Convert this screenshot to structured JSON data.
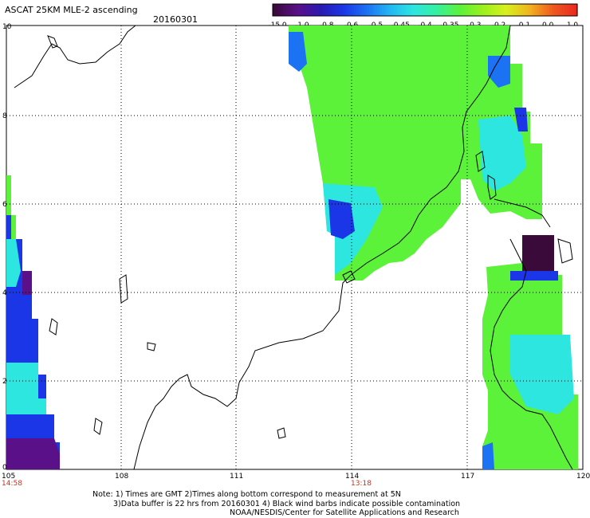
{
  "header": {
    "title": "ASCAT 25KM MLE-2 ascending",
    "date": "20160301"
  },
  "colorbar": {
    "labels": [
      "-15.0",
      "-1.0",
      "-0.8",
      "-0.6",
      "-0.5",
      "-0.45",
      "-0.4",
      "-0.35",
      "-0.3",
      "-0.2",
      "-0.1",
      "0.0",
      "1.0"
    ],
    "colors": [
      "#3a0a3a",
      "#5a1088",
      "#2a1ab0",
      "#1b36e6",
      "#1b72f2",
      "#23b7f2",
      "#2ee6e0",
      "#35f0a0",
      "#5cf23a",
      "#9cf01e",
      "#d8f01e",
      "#f0b41e",
      "#f05a1e",
      "#e82a1e"
    ]
  },
  "axes": {
    "lat_labels": [
      "10",
      "8",
      "6",
      "4",
      "2",
      "0"
    ],
    "lon_labels": [
      "105",
      "108",
      "111",
      "114",
      "117",
      "120"
    ],
    "time_labels": [
      "14:58",
      "13:18"
    ]
  },
  "notes": {
    "line1": "Note: 1) Times are GMT 2)Times along bottom correspond to measurement at 5N",
    "line2": "3)Data buffer is 22 hrs from 20160301 4) Black wind barbs indicate possible contamination",
    "line3": "NOAA/NESDIS/Center for Satellite Applications and Research"
  }
}
